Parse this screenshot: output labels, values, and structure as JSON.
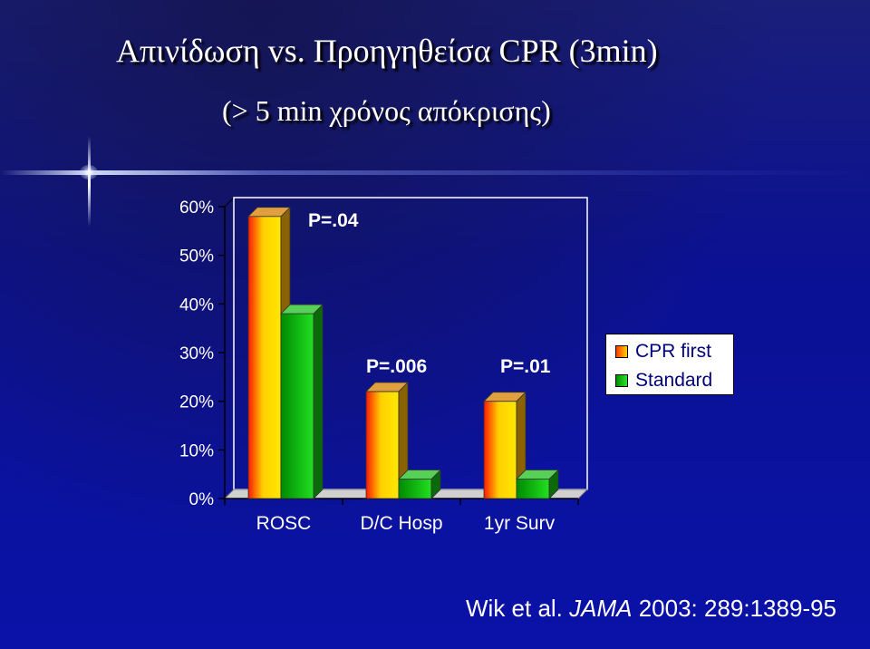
{
  "slide": {
    "title": "Απινίδωση vs. Προηγηθείσα CPR (3min)",
    "subtitle": "(> 5 min χρόνος απόκρισης)",
    "citation_prefix": "Wik et al. ",
    "citation_journal": "JAMA",
    "citation_suffix": " 2003: 289:1389-95"
  },
  "chart_data": {
    "type": "bar",
    "categories": [
      "ROSC",
      "D/C Hosp",
      "1yr Surv"
    ],
    "series": [
      {
        "name": "CPR first",
        "values": [
          58,
          22,
          20
        ],
        "color": "#f5a000"
      },
      {
        "name": "Standard",
        "values": [
          38,
          4,
          4
        ],
        "color": "#1ac81a"
      }
    ],
    "ylim": [
      0,
      60
    ],
    "yticks": [
      "0%",
      "10%",
      "20%",
      "30%",
      "40%",
      "50%",
      "60%"
    ],
    "annotations": [
      "P=.04",
      "P=.006",
      "P=.01"
    ],
    "legend_position": "right",
    "grid": false
  }
}
